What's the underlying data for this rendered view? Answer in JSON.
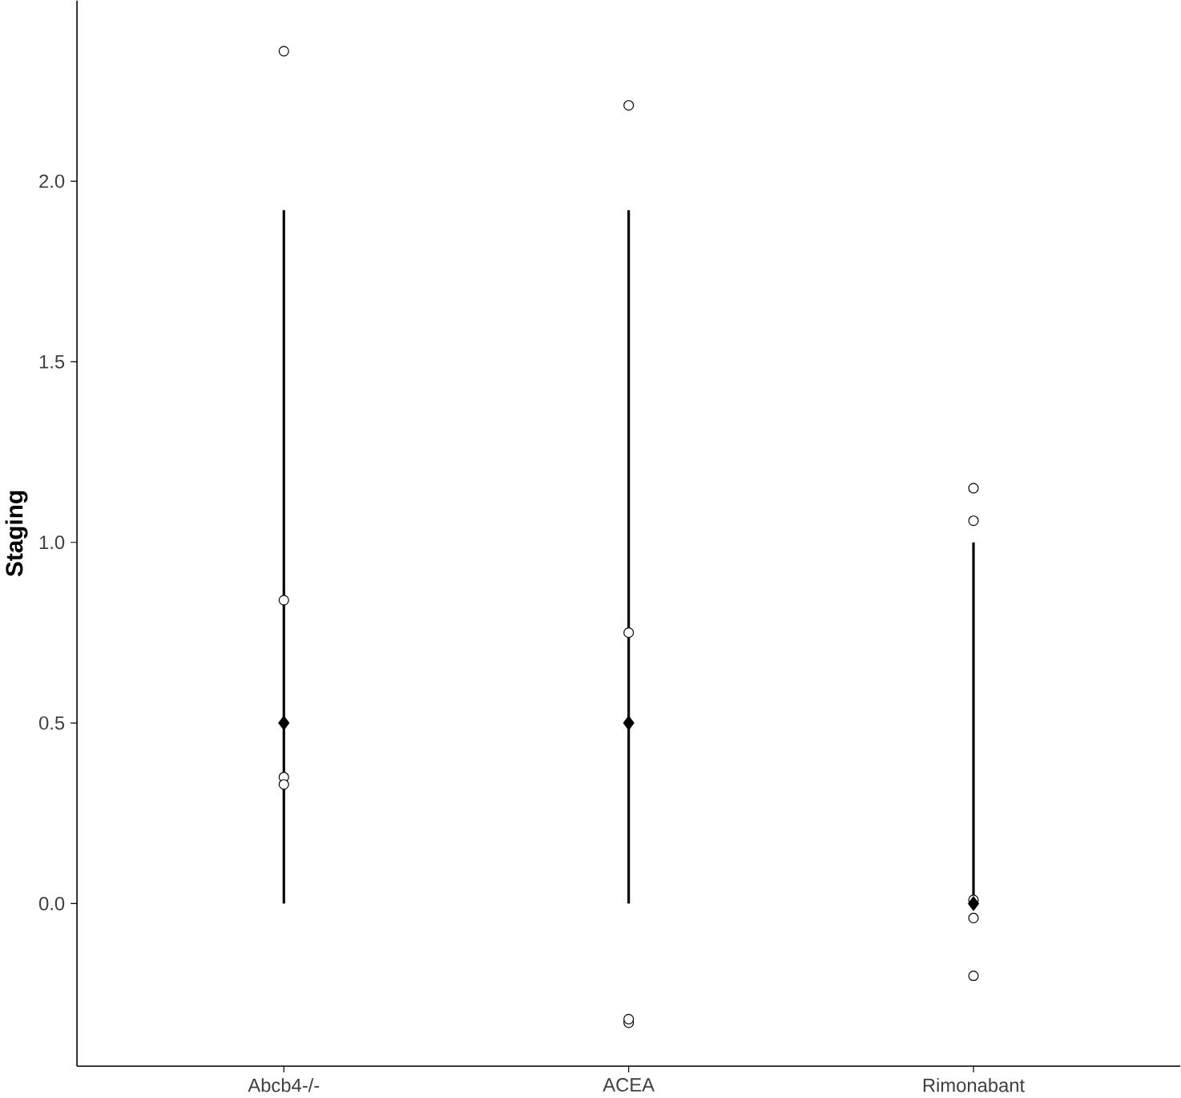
{
  "chart_data": {
    "type": "scatter",
    "ylabel": "Staging",
    "categories": [
      "Abcb4-/-",
      "ACEA",
      "Rimonabant"
    ],
    "ylim": [
      -0.45,
      2.5
    ],
    "yticks": [
      {
        "value": 0,
        "label": "0.0"
      },
      0.5,
      {
        "value": 1,
        "label": "1.0"
      },
      1.5,
      {
        "value": 2,
        "label": "2.0"
      }
    ],
    "grid": false,
    "series": [
      {
        "marker": "circle",
        "color": "#000000",
        "x": [
          "Abcb4-/-",
          "Abcb4-/-",
          "Abcb4-/-",
          "Abcb4-/-",
          "ACEA",
          "ACEA",
          "ACEA",
          "ACEA",
          "Rimonabant",
          "Rimonabant",
          "Rimonabant",
          "Rimonabant",
          "Rimonabant"
        ],
        "values": [
          2.36,
          0.84,
          0.35,
          0.33,
          2.21,
          0.75,
          -0.33,
          -0.32,
          1.15,
          1.06,
          0.01,
          -0.04,
          -0.2
        ]
      },
      {
        "marker": "diamond",
        "color": "#000000",
        "x": [
          "Abcb4-/-",
          "ACEA",
          "Rimonabant"
        ],
        "values": [
          0.5,
          0.5,
          0.0
        ],
        "errors": [
          [
            0.0,
            1.92
          ],
          [
            0.0,
            1.92
          ],
          [
            0.0,
            1.0
          ]
        ]
      }
    ]
  }
}
